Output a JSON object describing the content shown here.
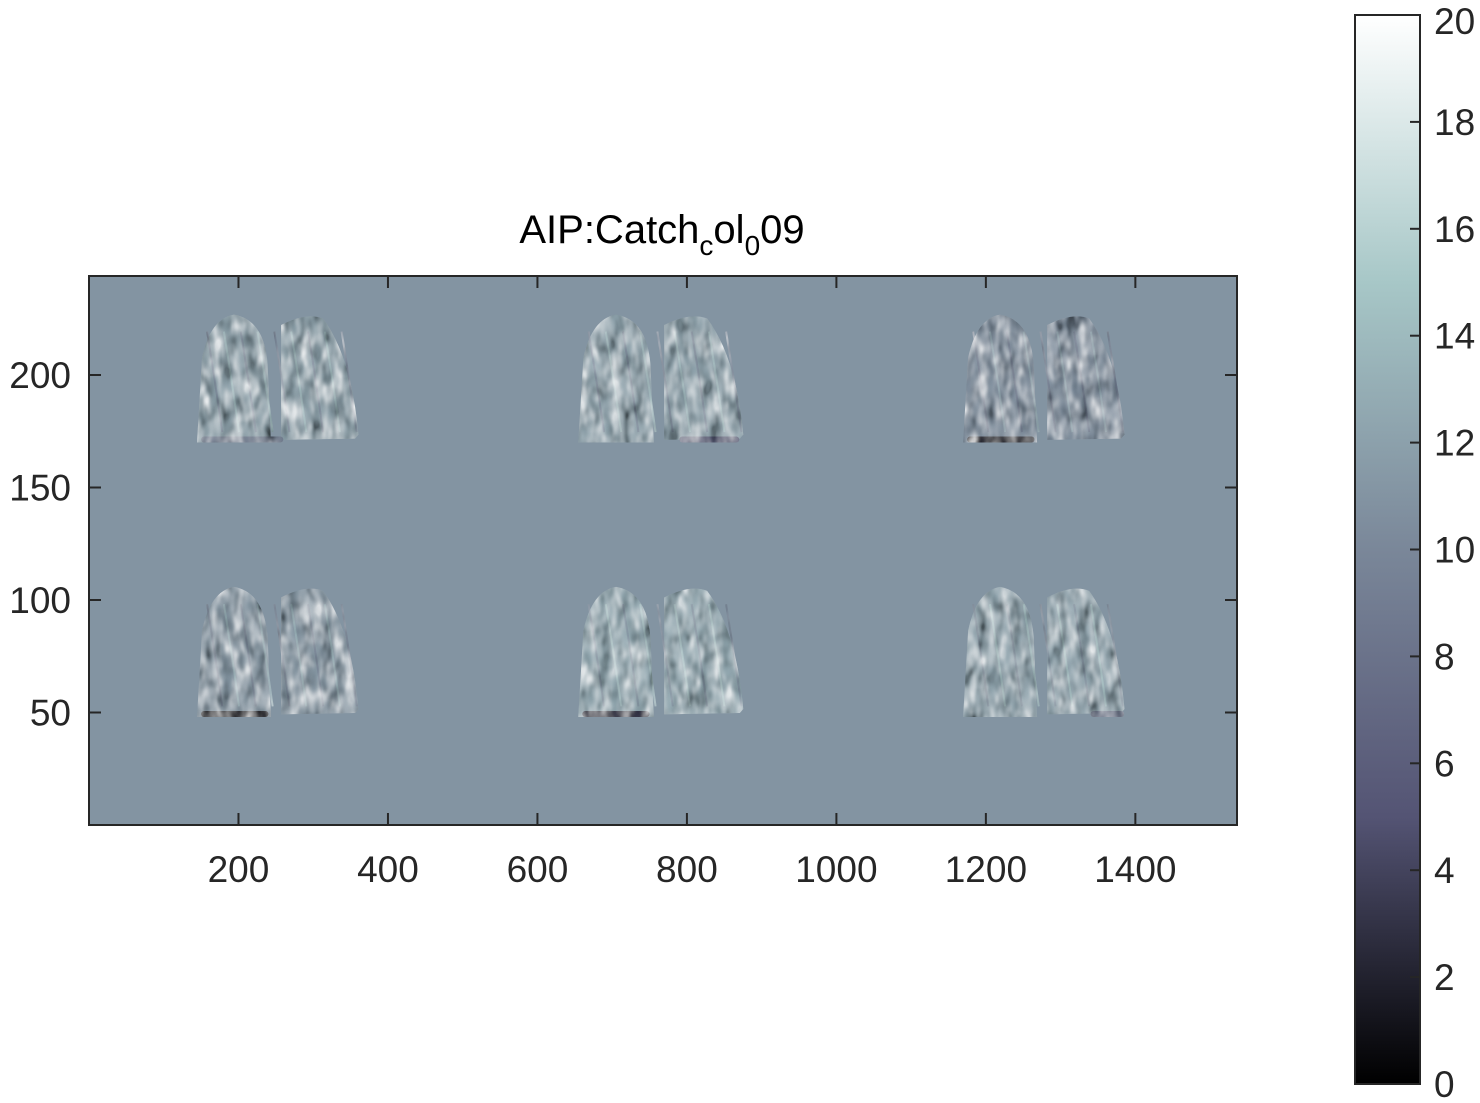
{
  "chart_data": {
    "type": "heatmap",
    "title": {
      "parts": [
        {
          "text": "AIP:Catch",
          "sub": false
        },
        {
          "text": "c",
          "sub": true
        },
        {
          "text": "ol",
          "sub": false
        },
        {
          "text": "0",
          "sub": true
        },
        {
          "text": "09",
          "sub": false
        }
      ]
    },
    "xlabel": "",
    "ylabel": "",
    "xlim": [
      0,
      1536
    ],
    "ylim": [
      0,
      244
    ],
    "y_direction": "normal",
    "xticks": [
      200,
      400,
      600,
      800,
      1000,
      1200,
      1400
    ],
    "xtick_labels": [
      "200",
      "400",
      "600",
      "800",
      "1000",
      "1200",
      "1400"
    ],
    "yticks": [
      50,
      100,
      150,
      200
    ],
    "ytick_labels": [
      "50",
      "100",
      "150",
      "200"
    ],
    "background_value": 11,
    "colormap": "bone",
    "colormap_stops": [
      "#000000",
      "#545474",
      "#7a8799",
      "#a7c7c7",
      "#ffffff"
    ],
    "colorbar": {
      "range": [
        0,
        20
      ],
      "ticks": [
        0,
        2,
        4,
        6,
        8,
        10,
        12,
        14,
        16,
        18,
        20
      ],
      "tick_labels": [
        "0",
        "2",
        "4",
        "6",
        "8",
        "10",
        "12",
        "14",
        "16",
        "18",
        "20"
      ]
    },
    "panels": [
      {
        "row": "top",
        "x_range": [
          140,
          365
        ],
        "y_range": [
          170,
          228
        ],
        "base_value": 12.0,
        "dark_band": {
          "x_range": [
            150,
            260
          ],
          "value": 9.5
        }
      },
      {
        "row": "top",
        "x_range": [
          650,
          880
        ],
        "y_range": [
          170,
          228
        ],
        "base_value": 12.2,
        "dark_band": {
          "x_range": [
            790,
            870
          ],
          "value": 6.5
        }
      },
      {
        "row": "top",
        "x_range": [
          1165,
          1390
        ],
        "y_range": [
          170,
          228
        ],
        "base_value": 10.6,
        "dark_band": {
          "x_range": [
            1175,
            1265
          ],
          "value": 2.0
        }
      },
      {
        "row": "bottom",
        "x_range": [
          140,
          365
        ],
        "y_range": [
          48,
          107
        ],
        "base_value": 11.3,
        "dark_band": {
          "x_range": [
            150,
            240
          ],
          "value": 1.5
        }
      },
      {
        "row": "bottom",
        "x_range": [
          650,
          880
        ],
        "y_range": [
          48,
          107
        ],
        "base_value": 12.6,
        "dark_band": {
          "x_range": [
            660,
            750
          ],
          "value": 3.0
        }
      },
      {
        "row": "bottom",
        "x_range": [
          1165,
          1390
        ],
        "y_range": [
          48,
          107
        ],
        "base_value": 12.3,
        "dark_band": {
          "x_range": [
            1340,
            1385
          ],
          "value": 8.5
        }
      }
    ],
    "grid": false,
    "legend": "none"
  }
}
